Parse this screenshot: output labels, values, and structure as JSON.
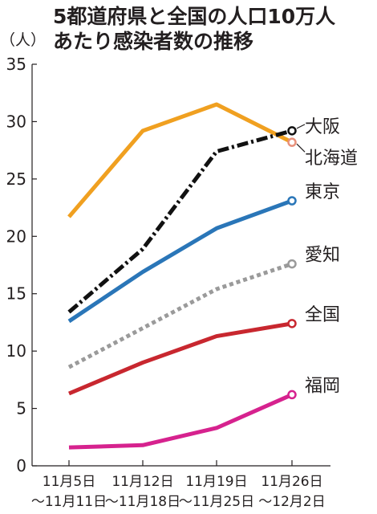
{
  "title_lines": [
    "5都道府県と全国の人口10万人",
    "あたり感染者数の推移"
  ],
  "chart_data": {
    "type": "line",
    "title": "5都道府県と全国の人口10万人あたり感染者数の推移",
    "ylabel": "（人）",
    "ylim": [
      0,
      35
    ],
    "yticks": [
      0,
      5,
      10,
      15,
      20,
      25,
      30,
      35
    ],
    "grid": false,
    "x": [
      [
        "11月5日",
        "～11月11日"
      ],
      [
        "11月12日",
        "～11月18日"
      ],
      [
        "11月19日",
        "～11月25日"
      ],
      [
        "11月26日",
        "～12月2日"
      ]
    ],
    "series": [
      {
        "name": "北海道",
        "values": [
          21.7,
          29.2,
          31.5,
          28.2
        ],
        "color": "#f0a020",
        "style": "solid",
        "marker_color": "#e8907a"
      },
      {
        "name": "大阪",
        "values": [
          13.4,
          18.9,
          27.4,
          29.2
        ],
        "color": "#111111",
        "style": "dashdot"
      },
      {
        "name": "東京",
        "values": [
          12.6,
          16.9,
          20.7,
          23.1
        ],
        "color": "#2a76b8",
        "style": "solid"
      },
      {
        "name": "愛知",
        "values": [
          8.6,
          12.0,
          15.4,
          17.6
        ],
        "color": "#9a9a9a",
        "style": "dotted"
      },
      {
        "name": "全国",
        "values": [
          6.3,
          9.0,
          11.3,
          12.4
        ],
        "color": "#c8272f",
        "style": "solid"
      },
      {
        "name": "福岡",
        "values": [
          1.6,
          1.8,
          3.3,
          6.2
        ],
        "color": "#d6228e",
        "style": "solid"
      }
    ]
  }
}
